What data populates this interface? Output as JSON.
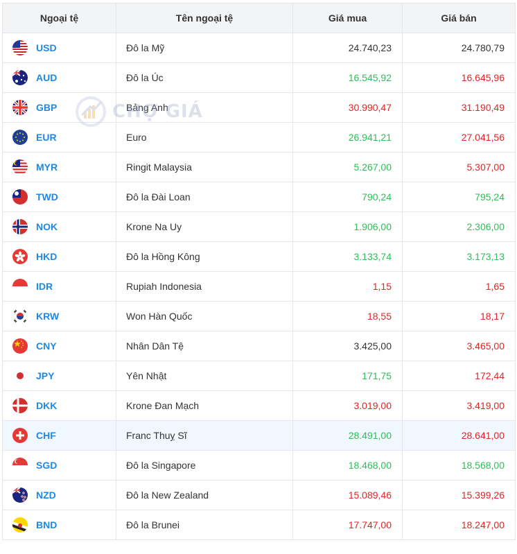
{
  "headers": {
    "code": "Ngoại tệ",
    "name": "Tên ngoại tệ",
    "buy": "Giá mua",
    "sell": "Giá bán"
  },
  "watermark": "CHỢ GIÁ",
  "colors": {
    "up": "#2ebd57",
    "down": "#e02424",
    "code": "#1e88e5"
  },
  "rows": [
    {
      "code": "USD",
      "name": "Đô la Mỹ",
      "buy": "24.740,23",
      "sell": "24.780,79",
      "buy_trend": "flat",
      "sell_trend": "flat",
      "flag": "us-flag-icon"
    },
    {
      "code": "AUD",
      "name": "Đô la Úc",
      "buy": "16.545,92",
      "sell": "16.645,96",
      "buy_trend": "up",
      "sell_trend": "down",
      "flag": "au-flag-icon"
    },
    {
      "code": "GBP",
      "name": "Bảng Anh",
      "buy": "30.990,47",
      "sell": "31.190,49",
      "buy_trend": "down",
      "sell_trend": "down",
      "flag": "gb-flag-icon"
    },
    {
      "code": "EUR",
      "name": "Euro",
      "buy": "26.941,21",
      "sell": "27.041,56",
      "buy_trend": "up",
      "sell_trend": "down",
      "flag": "eu-flag-icon"
    },
    {
      "code": "MYR",
      "name": "Ringit Malaysia",
      "buy": "5.267,00",
      "sell": "5.307,00",
      "buy_trend": "up",
      "sell_trend": "down",
      "flag": "my-flag-icon"
    },
    {
      "code": "TWD",
      "name": "Đô la Đài Loan",
      "buy": "790,24",
      "sell": "795,24",
      "buy_trend": "up",
      "sell_trend": "up",
      "flag": "tw-flag-icon"
    },
    {
      "code": "NOK",
      "name": "Krone Na Uy",
      "buy": "1.906,00",
      "sell": "2.306,00",
      "buy_trend": "up",
      "sell_trend": "up",
      "flag": "no-flag-icon"
    },
    {
      "code": "HKD",
      "name": "Đô la Hồng Kông",
      "buy": "3.133,74",
      "sell": "3.173,13",
      "buy_trend": "up",
      "sell_trend": "up",
      "flag": "hk-flag-icon"
    },
    {
      "code": "IDR",
      "name": "Rupiah Indonesia",
      "buy": "1,15",
      "sell": "1,65",
      "buy_trend": "down",
      "sell_trend": "down",
      "flag": "id-flag-icon"
    },
    {
      "code": "KRW",
      "name": "Won Hàn Quốc",
      "buy": "18,55",
      "sell": "18,17",
      "buy_trend": "down",
      "sell_trend": "down",
      "flag": "kr-flag-icon"
    },
    {
      "code": "CNY",
      "name": "Nhân Dân Tệ",
      "buy": "3.425,00",
      "sell": "3.465,00",
      "buy_trend": "flat",
      "sell_trend": "down",
      "flag": "cn-flag-icon"
    },
    {
      "code": "JPY",
      "name": "Yên Nhật",
      "buy": "171,75",
      "sell": "172,44",
      "buy_trend": "up",
      "sell_trend": "down",
      "flag": "jp-flag-icon"
    },
    {
      "code": "DKK",
      "name": "Krone Đan Mạch",
      "buy": "3.019,00",
      "sell": "3.419,00",
      "buy_trend": "down",
      "sell_trend": "down",
      "flag": "dk-flag-icon"
    },
    {
      "code": "CHF",
      "name": "Franc Thuỵ Sĩ",
      "buy": "28.491,00",
      "sell": "28.641,00",
      "buy_trend": "up",
      "sell_trend": "down",
      "flag": "ch-flag-icon"
    },
    {
      "code": "SGD",
      "name": "Đô la Singapore",
      "buy": "18.468,00",
      "sell": "18.568,00",
      "buy_trend": "up",
      "sell_trend": "up",
      "flag": "sg-flag-icon"
    },
    {
      "code": "NZD",
      "name": "Đô la New Zealand",
      "buy": "15.089,46",
      "sell": "15.399,26",
      "buy_trend": "down",
      "sell_trend": "down",
      "flag": "nz-flag-icon"
    },
    {
      "code": "BND",
      "name": "Đô la Brunei",
      "buy": "17.747,00",
      "sell": "18.247,00",
      "buy_trend": "down",
      "sell_trend": "down",
      "flag": "bn-flag-icon"
    }
  ]
}
